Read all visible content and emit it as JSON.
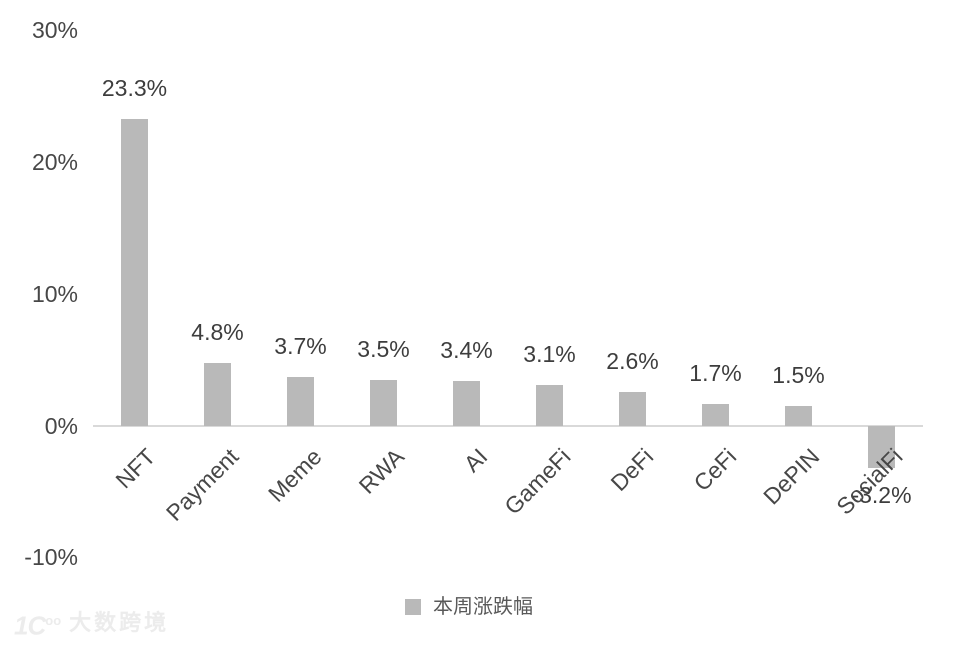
{
  "chart_data": {
    "type": "bar",
    "categories": [
      "NFT",
      "Payment",
      "Meme",
      "RWA",
      "AI",
      "GameFi",
      "DeFi",
      "CeFi",
      "DePIN",
      "SocialFi"
    ],
    "values": [
      23.3,
      4.8,
      3.7,
      3.5,
      3.4,
      3.1,
      2.6,
      1.7,
      1.5,
      -3.2
    ],
    "data_labels": [
      "23.3%",
      "4.8%",
      "3.7%",
      "3.5%",
      "3.4%",
      "3.1%",
      "2.6%",
      "1.7%",
      "1.5%",
      "-3.2%"
    ],
    "series": [
      {
        "name": "本周涨跌幅",
        "values": [
          23.3,
          4.8,
          3.7,
          3.5,
          3.4,
          3.1,
          2.6,
          1.7,
          1.5,
          -3.2
        ]
      }
    ],
    "title": "",
    "xlabel": "",
    "ylabel": "",
    "ylim": [
      -10,
      30
    ],
    "yticks": [
      {
        "label": "30%",
        "value": 30
      },
      {
        "label": "20%",
        "value": 20
      },
      {
        "label": "10%",
        "value": 10
      },
      {
        "label": "0%",
        "value": 0
      },
      {
        "label": "-10%",
        "value": -10
      }
    ],
    "grid": false,
    "legend_position": "bottom",
    "bar_color": "#b9b9b9",
    "axis_line_color": "#d9d9d9",
    "label_color": "#3d3d3d"
  },
  "legend": {
    "label": "本周涨跌幅"
  },
  "watermark": {
    "logo_main": "1C",
    "logo_sup": "oo",
    "text": "大数跨境"
  }
}
